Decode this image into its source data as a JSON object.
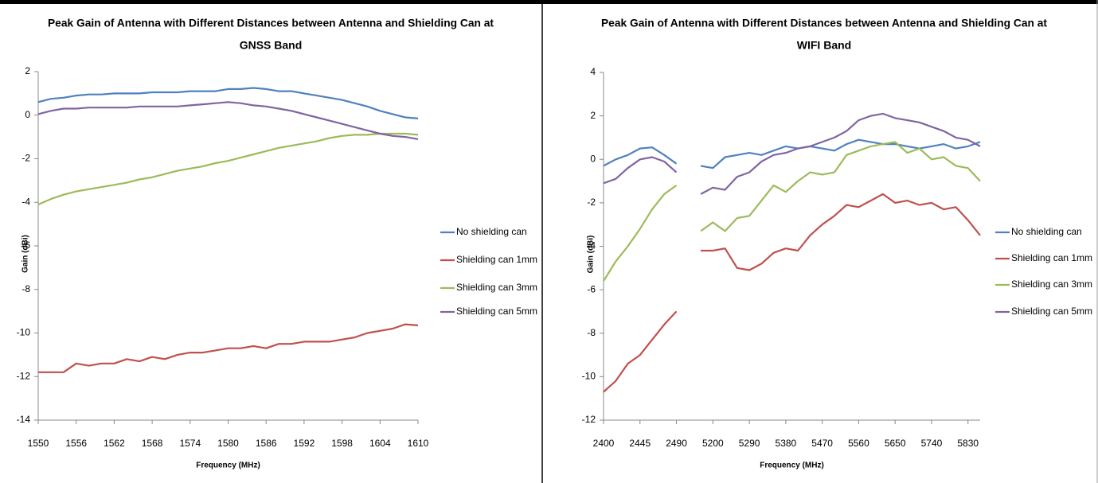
{
  "chart_data": [
    {
      "type": "line",
      "title": [
        "Peak Gain of Antenna with Different Distances between Antenna and Shielding Can at",
        "GNSS Band"
      ],
      "x_label": "Frequency  (MHz)",
      "y_label": "Gain (dBi)",
      "x": [
        1550,
        1552,
        1554,
        1556,
        1558,
        1560,
        1562,
        1564,
        1566,
        1568,
        1570,
        1572,
        1574,
        1576,
        1578,
        1580,
        1582,
        1584,
        1586,
        1588,
        1590,
        1592,
        1594,
        1596,
        1598,
        1600,
        1602,
        1604,
        1606,
        1608,
        1610
      ],
      "xlim": [
        1550,
        1610
      ],
      "xticks": [
        1550,
        1556,
        1562,
        1568,
        1574,
        1580,
        1586,
        1592,
        1598,
        1604,
        1610
      ],
      "ylim": [
        -14,
        2
      ],
      "yticks": [
        2,
        0,
        -2,
        -4,
        -6,
        -8,
        -10,
        -12,
        -14
      ],
      "grid": false,
      "legend": "right",
      "series": [
        {
          "name": "No shielding can",
          "color": "#4f81bd",
          "values": [
            0.6,
            0.75,
            0.8,
            0.9,
            0.95,
            0.95,
            1.0,
            1.0,
            1.0,
            1.05,
            1.05,
            1.05,
            1.1,
            1.1,
            1.1,
            1.2,
            1.2,
            1.25,
            1.2,
            1.1,
            1.1,
            1.0,
            0.9,
            0.8,
            0.7,
            0.55,
            0.4,
            0.2,
            0.05,
            -0.1,
            -0.15
          ]
        },
        {
          "name": "Shielding can 1mm",
          "color": "#c0504d",
          "values": [
            -11.8,
            -11.8,
            -11.8,
            -11.4,
            -11.5,
            -11.4,
            -11.4,
            -11.2,
            -11.3,
            -11.1,
            -11.2,
            -11.0,
            -10.9,
            -10.9,
            -10.8,
            -10.7,
            -10.7,
            -10.6,
            -10.7,
            -10.5,
            -10.5,
            -10.4,
            -10.4,
            -10.4,
            -10.3,
            -10.2,
            -10.0,
            -9.9,
            -9.8,
            -9.6,
            -9.65
          ]
        },
        {
          "name": "Shielding can 3mm",
          "color": "#9bbb59",
          "values": [
            -4.1,
            -3.85,
            -3.65,
            -3.5,
            -3.4,
            -3.3,
            -3.2,
            -3.1,
            -2.95,
            -2.85,
            -2.7,
            -2.55,
            -2.45,
            -2.35,
            -2.2,
            -2.1,
            -1.95,
            -1.8,
            -1.65,
            -1.5,
            -1.4,
            -1.3,
            -1.2,
            -1.05,
            -0.95,
            -0.9,
            -0.9,
            -0.85,
            -0.85,
            -0.85,
            -0.9
          ]
        },
        {
          "name": "Shielding can 5mm",
          "color": "#8064a2",
          "values": [
            0.05,
            0.2,
            0.3,
            0.3,
            0.35,
            0.35,
            0.35,
            0.35,
            0.4,
            0.4,
            0.4,
            0.4,
            0.45,
            0.5,
            0.55,
            0.6,
            0.55,
            0.45,
            0.4,
            0.3,
            0.2,
            0.05,
            -0.1,
            -0.25,
            -0.4,
            -0.55,
            -0.7,
            -0.85,
            -0.95,
            -1.0,
            -1.1
          ]
        }
      ]
    },
    {
      "type": "line",
      "title": [
        "Peak Gain of Antenna with Different Distances between Antenna and Shielding Can at",
        "WIFI Band"
      ],
      "x_label": "Frequency  (MHz)",
      "y_label": "Gain (dBi)",
      "categories": [
        "2400",
        null,
        null,
        "2445",
        null,
        null,
        "2490",
        null,
        null,
        "5200",
        null,
        null,
        "5290",
        null,
        null,
        "5380",
        null,
        null,
        "5470",
        null,
        null,
        "5560",
        null,
        null,
        "5650",
        null,
        null,
        "5740",
        null,
        null,
        "5830",
        null
      ],
      "ylim": [
        -12,
        4
      ],
      "yticks": [
        4,
        2,
        0,
        -2,
        -4,
        -6,
        -8,
        -10,
        -12
      ],
      "grid": false,
      "legend": "right",
      "series": [
        {
          "name": "No shielding can",
          "color": "#4f81bd",
          "values": [
            -0.3,
            0.0,
            0.2,
            0.5,
            0.55,
            0.2,
            -0.2,
            null,
            -0.3,
            -0.4,
            0.1,
            0.2,
            0.3,
            0.2,
            0.4,
            0.6,
            0.5,
            0.6,
            0.5,
            0.4,
            0.7,
            0.9,
            0.8,
            0.7,
            0.7,
            0.6,
            0.5,
            0.6,
            0.7,
            0.5,
            0.6,
            0.8
          ]
        },
        {
          "name": "Shielding can 1mm",
          "color": "#c0504d",
          "values": [
            -10.7,
            -10.2,
            -9.4,
            -9.0,
            -8.3,
            -7.6,
            -7.0,
            null,
            -4.2,
            -4.2,
            -4.1,
            -5.0,
            -5.1,
            -4.8,
            -4.3,
            -4.1,
            -4.2,
            -3.5,
            -3.0,
            -2.6,
            -2.1,
            -2.2,
            -1.9,
            -1.6,
            -2.0,
            -1.9,
            -2.1,
            -2.0,
            -2.3,
            -2.2,
            -2.8,
            -3.5
          ]
        },
        {
          "name": "Shielding can 3mm",
          "color": "#9bbb59",
          "values": [
            -5.6,
            -4.7,
            -4.0,
            -3.2,
            -2.3,
            -1.6,
            -1.2,
            null,
            -3.3,
            -2.9,
            -3.3,
            -2.7,
            -2.6,
            -1.9,
            -1.2,
            -1.5,
            -1.0,
            -0.6,
            -0.7,
            -0.6,
            0.2,
            0.4,
            0.6,
            0.7,
            0.8,
            0.3,
            0.5,
            0.0,
            0.1,
            -0.3,
            -0.4,
            -1.0
          ]
        },
        {
          "name": "Shielding can 5mm",
          "color": "#8064a2",
          "values": [
            -1.1,
            -0.9,
            -0.4,
            0.0,
            0.1,
            -0.1,
            -0.6,
            null,
            -1.6,
            -1.3,
            -1.4,
            -0.8,
            -0.6,
            -0.1,
            0.2,
            0.3,
            0.5,
            0.6,
            0.8,
            1.0,
            1.3,
            1.8,
            2.0,
            2.1,
            1.9,
            1.8,
            1.7,
            1.5,
            1.3,
            1.0,
            0.9,
            0.6
          ]
        }
      ]
    }
  ]
}
